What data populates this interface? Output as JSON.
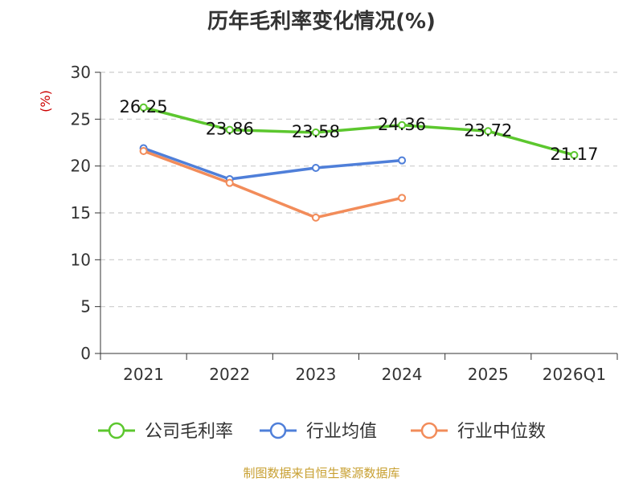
{
  "chart_data": {
    "type": "line",
    "title": "历年毛利率变化情况(%)",
    "ylabel": "(%)",
    "xlabel": "",
    "categories": [
      "2021",
      "2022",
      "2023",
      "2024",
      "2025",
      "2026Q1"
    ],
    "ylim": [
      0,
      30
    ],
    "yticks": [
      0,
      5,
      10,
      15,
      20,
      25,
      30
    ],
    "grid": true,
    "legend_position": "bottom",
    "series": [
      {
        "name": "公司毛利率",
        "color": "#5cc72e",
        "values": [
          26.25,
          23.86,
          23.58,
          24.36,
          23.72,
          21.17
        ],
        "labels": [
          "26.25",
          "23.86",
          "23.58",
          "24.36",
          "23.72",
          "21.17"
        ]
      },
      {
        "name": "行业均值",
        "color": "#4f7fd9",
        "values": [
          21.9,
          18.6,
          19.8,
          20.6,
          null,
          null
        ]
      },
      {
        "name": "行业中位数",
        "color": "#f28c5a",
        "values": [
          21.6,
          18.2,
          14.5,
          16.6,
          null,
          null
        ]
      }
    ]
  },
  "source": "制图数据来自恒生聚源数据库"
}
